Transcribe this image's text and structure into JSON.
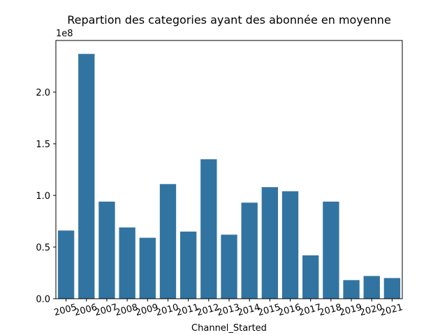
{
  "chart_data": {
    "type": "bar",
    "title": "Repartion des categories ayant des abonnée en moyenne",
    "xlabel": "Channel_Started",
    "ylabel": "",
    "y_offset_label": "1e8",
    "categories": [
      "2005",
      "2006",
      "2007",
      "2008",
      "2009",
      "2010",
      "2011",
      "2012",
      "2013",
      "2014",
      "2015",
      "2016",
      "2017",
      "2018",
      "2019",
      "2020",
      "2021"
    ],
    "values": [
      66000000,
      237000000,
      94000000,
      69000000,
      59000000,
      111000000,
      65000000,
      135000000,
      62000000,
      93000000,
      108000000,
      104000000,
      42000000,
      94000000,
      18000000,
      22000000,
      20000000
    ],
    "ylim": [
      0,
      250000000
    ],
    "yticks": [
      0,
      50000000,
      100000000,
      150000000,
      200000000
    ],
    "ytick_labels": [
      "0.0",
      "0.5",
      "1.0",
      "1.5",
      "2.0"
    ],
    "bar_color": "#3274a1",
    "grid": false,
    "x_tick_rotation": "slight"
  }
}
